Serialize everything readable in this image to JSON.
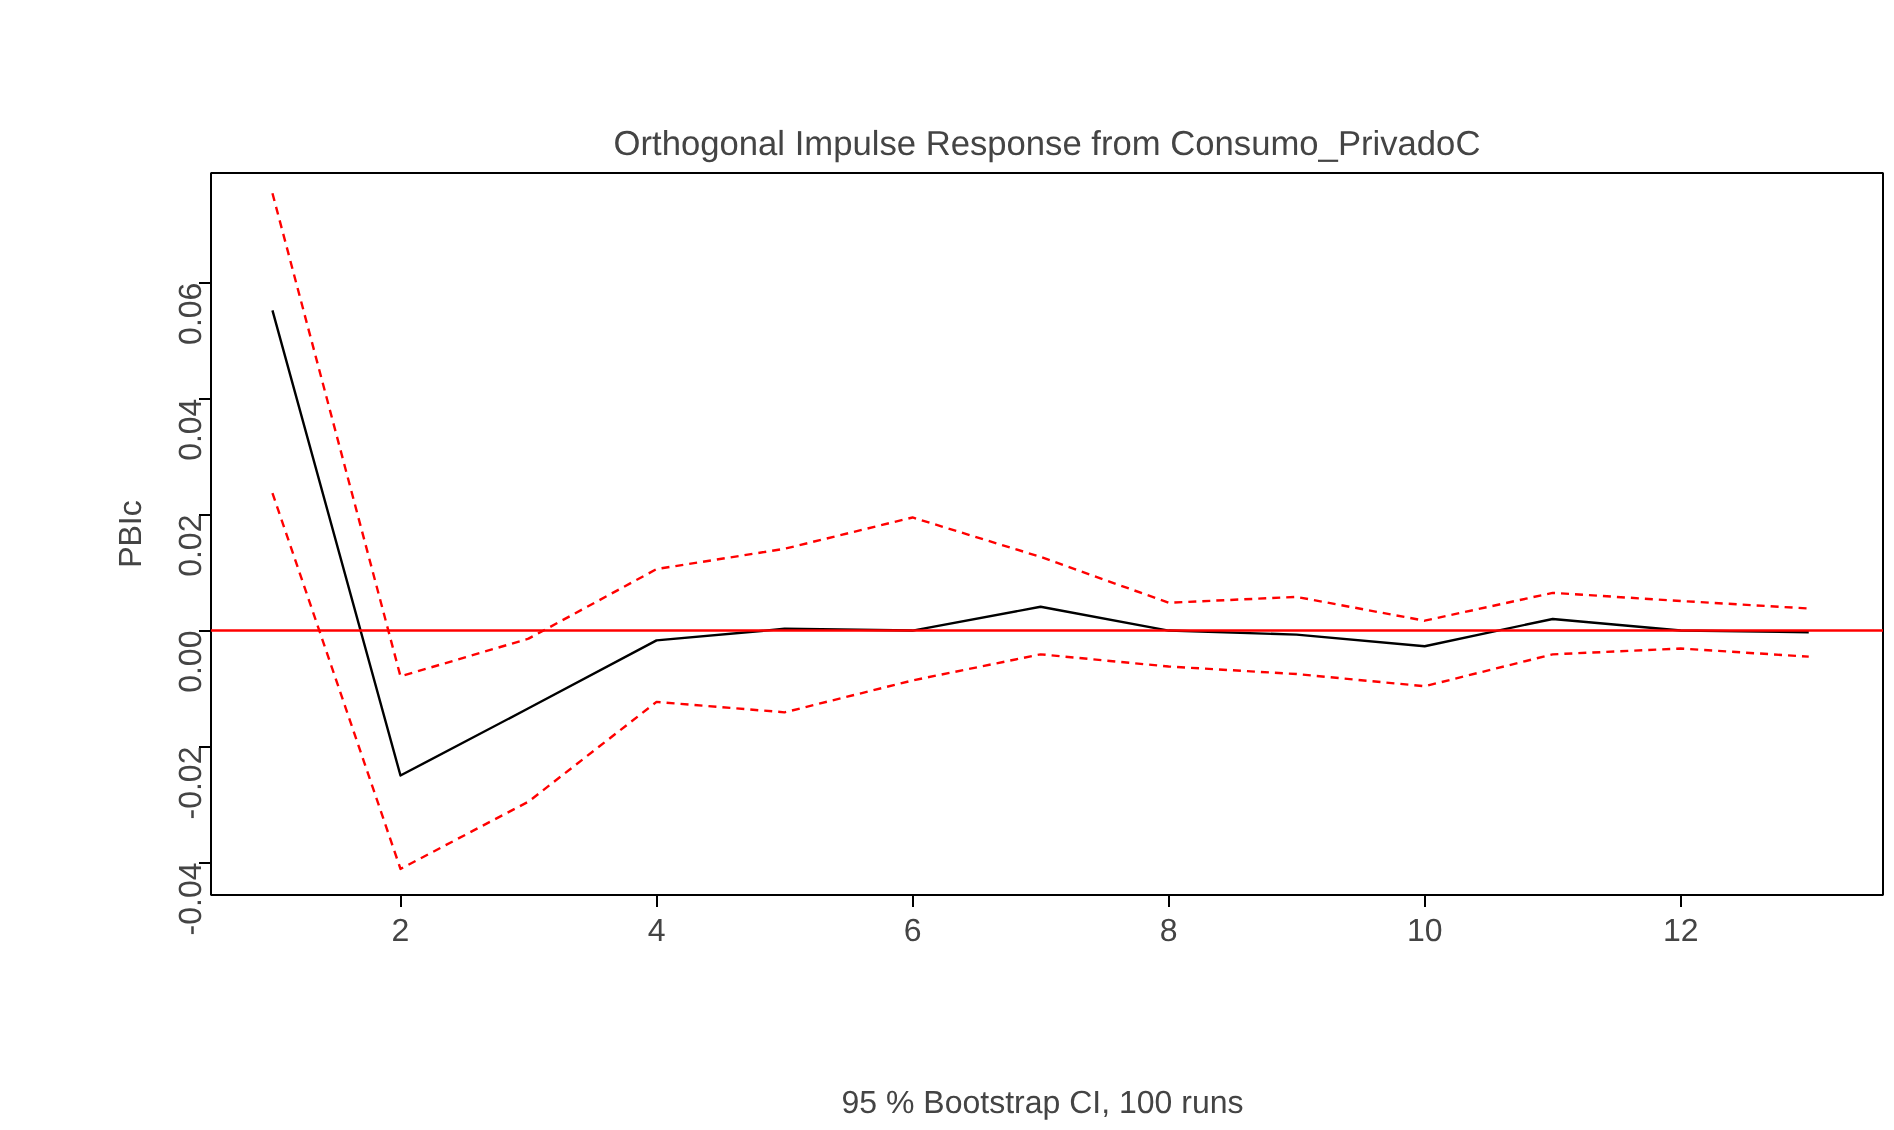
{
  "chart_data": {
    "type": "line",
    "title": "Orthogonal Impulse Response from Consumo_PrivadoC",
    "xlabel": "95 % Bootstrap CI,  100 runs",
    "ylabel": "PBIc",
    "x": [
      1,
      2,
      3,
      4,
      5,
      6,
      7,
      8,
      9,
      10,
      11,
      12,
      13
    ],
    "series": [
      {
        "color": "#000000",
        "line_style": "solid",
        "values": [
          0.0552,
          -0.025,
          -0.0134,
          -0.0017,
          0.0003,
          0,
          0.0041,
          0,
          -0.0007,
          -0.0027,
          0.002,
          0,
          -0.0003
        ]
      },
      {
        "color": "#ff0000",
        "line_style": "dashed",
        "values": [
          0.0754,
          -0.0079,
          -0.0014,
          0.0106,
          0.0141,
          0.0195,
          0.0127,
          0.0048,
          0.0058,
          0.0017,
          0.0065,
          0.0051,
          0.0038
        ]
      },
      {
        "color": "#ff0000",
        "line_style": "dashed",
        "values": [
          0.0237,
          -0.0411,
          -0.0295,
          -0.0123,
          -0.0141,
          -0.0086,
          -0.0041,
          -0.0062,
          -0.0075,
          -0.0096,
          -0.0041,
          -0.0031,
          -0.0045
        ]
      }
    ],
    "xlim": [
      0.52,
      13.58
    ],
    "ylim": [
      -0.0456,
      0.0789
    ],
    "xticks": [
      2,
      4,
      6,
      8,
      10,
      12
    ],
    "yticks": [
      {
        "value": -0.04,
        "label": "-0.04"
      },
      {
        "value": -0.02,
        "label": "-0.02"
      },
      {
        "value": 0,
        "label": "0.00"
      },
      {
        "value": 0.02,
        "label": "0.02"
      },
      {
        "value": 0.04,
        "label": "0.04"
      },
      {
        "value": 0.06,
        "label": "0.06"
      }
    ],
    "ref_lines": [
      {
        "axis": "y",
        "value": 0,
        "color": "#ff0000",
        "line_style": "solid"
      }
    ],
    "grid": false
  }
}
